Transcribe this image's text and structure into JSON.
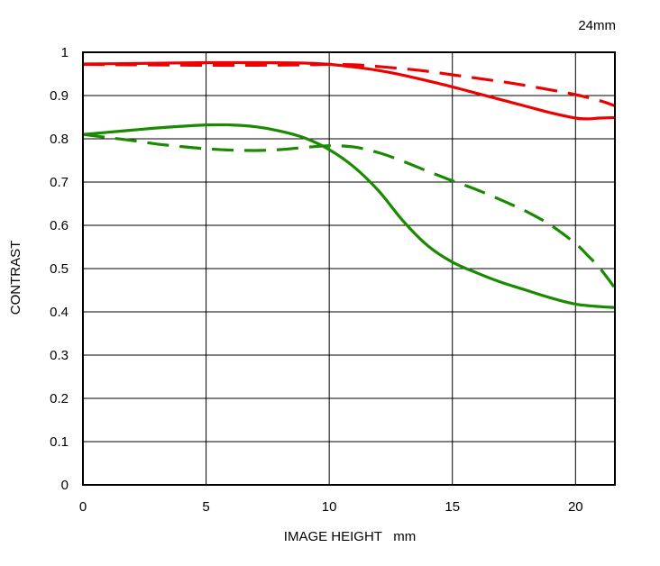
{
  "chart_data": {
    "type": "line",
    "title": "24mm",
    "xlabel": "IMAGE HEIGHT   mm",
    "ylabel": "CONTRAST",
    "xlim": [
      0,
      21.6
    ],
    "ylim": [
      0,
      1
    ],
    "xticks": [
      0,
      5,
      10,
      15,
      20
    ],
    "yticks": [
      0,
      0.1,
      0.2,
      0.3,
      0.4,
      0.5,
      0.6,
      0.7,
      0.8,
      0.9,
      1
    ],
    "ytick_labels": [
      "0",
      "0.1",
      "0.2",
      "0.3",
      "0.4",
      "0.5",
      "0.6",
      "0.7",
      "0.8",
      "0.9",
      "1"
    ],
    "grid": true,
    "series": [
      {
        "name": "red-solid",
        "color": "#ee0000",
        "dash": "solid",
        "x": [
          0,
          2,
          5,
          7,
          9,
          10,
          11,
          12,
          13,
          14,
          15,
          16,
          17,
          18,
          19,
          20,
          20.5,
          21,
          21.6
        ],
        "y": [
          0.973,
          0.974,
          0.976,
          0.976,
          0.975,
          0.972,
          0.966,
          0.958,
          0.947,
          0.934,
          0.92,
          0.905,
          0.89,
          0.875,
          0.86,
          0.848,
          0.846,
          0.848,
          0.849
        ]
      },
      {
        "name": "red-dashed",
        "color": "#ee0000",
        "dash": "dashed",
        "x": [
          0,
          2,
          5,
          7,
          9,
          10,
          11,
          12,
          13,
          14,
          15,
          16,
          17,
          18,
          19,
          20,
          21,
          21.6
        ],
        "y": [
          0.972,
          0.971,
          0.97,
          0.97,
          0.971,
          0.972,
          0.971,
          0.967,
          0.962,
          0.956,
          0.948,
          0.94,
          0.932,
          0.923,
          0.913,
          0.902,
          0.888,
          0.876
        ]
      },
      {
        "name": "green-solid",
        "color": "#1a8a00",
        "dash": "solid",
        "x": [
          0,
          1,
          2,
          3,
          4,
          5,
          6,
          7,
          8,
          9,
          10,
          11,
          12,
          13,
          14,
          15,
          16,
          17,
          18,
          19,
          20,
          21,
          21.6
        ],
        "y": [
          0.81,
          0.815,
          0.82,
          0.825,
          0.829,
          0.832,
          0.832,
          0.828,
          0.818,
          0.802,
          0.775,
          0.735,
          0.68,
          0.61,
          0.553,
          0.515,
          0.49,
          0.468,
          0.45,
          0.432,
          0.418,
          0.412,
          0.41
        ]
      },
      {
        "name": "green-dashed",
        "color": "#1a8a00",
        "dash": "dashed",
        "x": [
          0,
          1,
          2,
          3,
          4,
          5,
          6,
          7,
          8,
          9,
          10,
          11,
          12,
          13,
          14,
          15,
          16,
          17,
          18,
          19,
          20,
          20.5,
          21,
          21.6
        ],
        "y": [
          0.81,
          0.803,
          0.796,
          0.788,
          0.782,
          0.777,
          0.774,
          0.773,
          0.775,
          0.78,
          0.784,
          0.781,
          0.768,
          0.748,
          0.725,
          0.703,
          0.682,
          0.658,
          0.632,
          0.6,
          0.558,
          0.53,
          0.5,
          0.455
        ]
      }
    ]
  }
}
